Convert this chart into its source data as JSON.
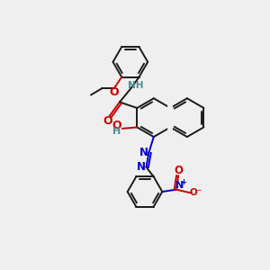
{
  "bg_color": "#efefef",
  "bond_color": "#1a1a1a",
  "n_color": "#0000cd",
  "o_color": "#cc0000",
  "h_color": "#4a9090",
  "figsize": [
    3.0,
    3.0
  ],
  "dpi": 100,
  "xlim": [
    0,
    10
  ],
  "ylim": [
    0,
    10
  ]
}
